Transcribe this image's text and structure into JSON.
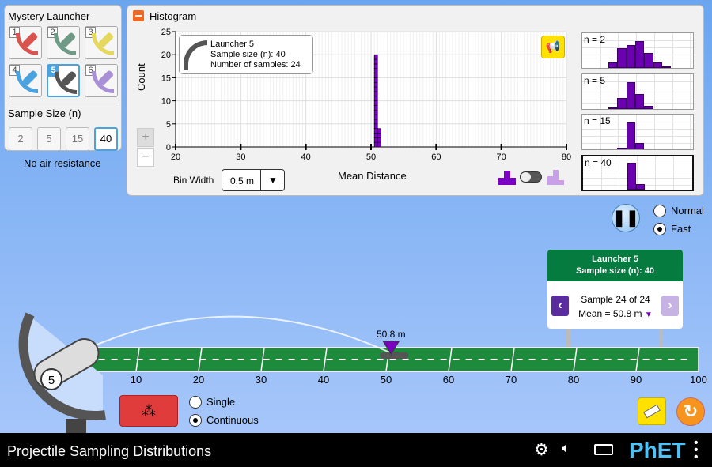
{
  "launcher_panel": {
    "title": "Mystery Launcher",
    "launchers": [
      {
        "number": "1",
        "color": "#d9534f"
      },
      {
        "number": "2",
        "color": "#6e9a86"
      },
      {
        "number": "3",
        "color": "#e5d85c"
      },
      {
        "number": "4",
        "color": "#4aa3df"
      },
      {
        "number": "5",
        "color": "#555555",
        "selected": true
      },
      {
        "number": "6",
        "color": "#a98fd6"
      }
    ],
    "sample_size_title": "Sample Size (n)",
    "sample_sizes": [
      "2",
      "5",
      "15",
      "40"
    ],
    "selected_sample_size": "40"
  },
  "air_resistance": "No air resistance",
  "histogram": {
    "title": "Histogram",
    "collapse_icon": "minus-icon",
    "bin_width_label": "Bin Width",
    "bin_width_value": "0.5 m",
    "legend": {
      "launcher": "Launcher 5",
      "sample_size": "Sample size (n): 40",
      "num_samples": "Number of samples: 24"
    },
    "zoom_in": "+",
    "zoom_out": "−",
    "sound_icon": "megaphone-icon"
  },
  "chart_data": {
    "type": "bar",
    "xlabel": "Mean Distance",
    "ylabel": "Count",
    "xlim": [
      20,
      80
    ],
    "ylim": [
      0,
      25
    ],
    "xticks": [
      "20",
      "30",
      "40",
      "50",
      "60",
      "70",
      "80"
    ],
    "yticks": [
      "0",
      "5",
      "10",
      "15",
      "20",
      "25"
    ],
    "bin_width": 0.5,
    "bins": [
      {
        "start": 50.5,
        "count": 20
      },
      {
        "start": 51.0,
        "count": 4
      }
    ],
    "grid": true,
    "color": "#7b00c4"
  },
  "mini_histograms": [
    {
      "label": "n = 2",
      "heights": [
        0.2,
        0.75,
        0.85,
        1.0,
        0.55,
        0.2,
        0.05
      ],
      "start": 3
    },
    {
      "label": "n = 5",
      "heights": [
        0.03,
        0.4,
        1.0,
        0.55,
        0.1
      ],
      "start": 3
    },
    {
      "label": "n = 15",
      "heights": [
        0.05,
        1.0,
        0.25
      ],
      "start": 4
    },
    {
      "label": "n = 40",
      "heights": [
        1.0,
        0.2
      ],
      "start": 5,
      "selected": true
    }
  ],
  "speed": {
    "options": [
      "Normal",
      "Fast"
    ],
    "selected": "Fast"
  },
  "sign": {
    "line1": "Launcher 5",
    "line2": "Sample size (n): 40",
    "sample": "Sample 24 of 24",
    "mean": "Mean = 50.8 m"
  },
  "field": {
    "ticks": [
      "10",
      "20",
      "30",
      "40",
      "50",
      "60",
      "70",
      "80",
      "90",
      "100"
    ],
    "marker_label": "50.8 m",
    "marker_value": 50.8
  },
  "launcher_number": "5",
  "launch_mode": {
    "options": [
      "Single",
      "Continuous"
    ],
    "selected": "Continuous"
  },
  "footer": {
    "title": "Projectile Sampling Distributions",
    "logo": "PhET"
  }
}
